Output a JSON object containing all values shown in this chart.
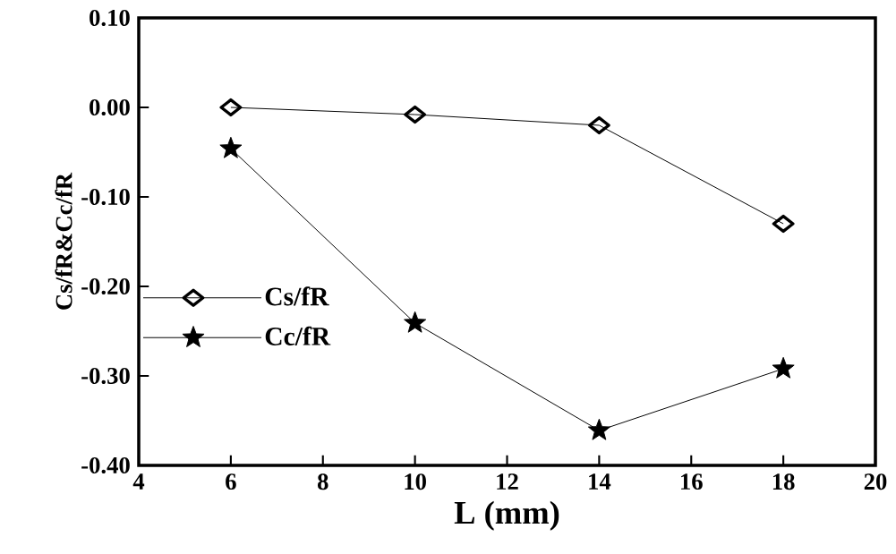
{
  "chart_data": {
    "type": "line",
    "xlabel": "L (mm)",
    "ylabel": "Cs/fR&Cc/fR",
    "x": [
      6,
      10,
      14,
      18
    ],
    "series": [
      {
        "name": "Cs/fR",
        "color": "#000000",
        "marker": "diamond",
        "values": [
          0.0,
          -0.008,
          -0.02,
          -0.13
        ]
      },
      {
        "name": "Cc/fR",
        "color": "#000000",
        "marker": "star",
        "values": [
          -0.046,
          -0.241,
          -0.361,
          -0.292
        ]
      }
    ],
    "xlim": [
      4,
      20
    ],
    "xticks": [
      4,
      6,
      8,
      10,
      12,
      14,
      16,
      18,
      20
    ],
    "ylim": [
      -0.4,
      0.1
    ],
    "yticks": [
      {
        "value": -0.4,
        "label": "-0.40"
      },
      {
        "value": -0.3,
        "label": "-0.30"
      },
      {
        "value": -0.2,
        "label": "-0.20"
      },
      {
        "value": -0.1,
        "label": "-0.10"
      },
      {
        "value": 0.0,
        "label": "0.00"
      },
      {
        "value": 0.1,
        "label": "0.10"
      }
    ],
    "grid": false,
    "legend": "left",
    "line_style": "solid"
  }
}
